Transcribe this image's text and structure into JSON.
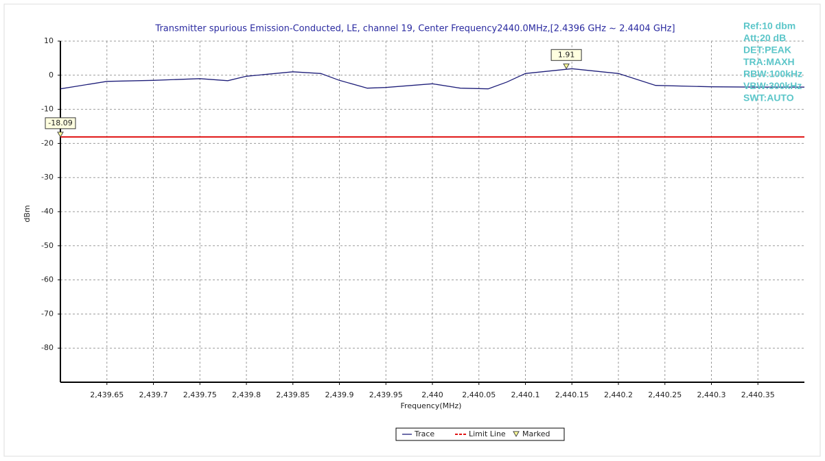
{
  "chart_data": {
    "type": "line",
    "title": "Transmitter spurious Emission-Conducted, LE, channel 19, Center Frequency2440.0MHz,[2.4396 GHz ~ 2.4404 GHz]",
    "x_label": "Frequency(MHz)",
    "y_label": "dBm",
    "x": [
      2439.6,
      2439.65,
      2439.7,
      2439.75,
      2439.78,
      2439.8,
      2439.85,
      2439.88,
      2439.9,
      2439.93,
      2439.95,
      2440.0,
      2440.03,
      2440.06,
      2440.08,
      2440.1,
      2440.15,
      2440.2,
      2440.24,
      2440.3,
      2440.35,
      2440.4
    ],
    "series": [
      {
        "name": "Trace",
        "color": "#1c1c78",
        "values": [
          -4,
          -1.8,
          -1.5,
          -1,
          -1.6,
          -0.3,
          1,
          0.5,
          -1.5,
          -3.8,
          -3.6,
          -2.5,
          -3.8,
          -4,
          -2,
          0.5,
          1.9,
          0.5,
          -3,
          -3.4,
          -3.5,
          -3.5
        ]
      }
    ],
    "limit_line": {
      "name": "Limit Line",
      "color": "#e01010",
      "value": -18.09
    },
    "markers": {
      "name": "Marked",
      "points": [
        {
          "x": 2439.6,
          "value": -18.09
        },
        {
          "x": 2440.144,
          "value": 1.91
        }
      ]
    },
    "xlim": [
      2439.6,
      2440.4
    ],
    "ylim": [
      -90,
      10
    ],
    "xticks": [
      {
        "value": 2439.65,
        "label": "2,439.65"
      },
      {
        "value": 2439.7,
        "label": "2,439.7"
      },
      {
        "value": 2439.75,
        "label": "2,439.75"
      },
      {
        "value": 2439.8,
        "label": "2,439.8"
      },
      {
        "value": 2439.85,
        "label": "2,439.85"
      },
      {
        "value": 2439.9,
        "label": "2,439.9"
      },
      {
        "value": 2439.95,
        "label": "2,439.95"
      },
      {
        "value": 2440,
        "label": "2,440"
      },
      {
        "value": 2440.05,
        "label": "2,440.05"
      },
      {
        "value": 2440.1,
        "label": "2,440.1"
      },
      {
        "value": 2440.15,
        "label": "2,440.15"
      },
      {
        "value": 2440.2,
        "label": "2,440.2"
      },
      {
        "value": 2440.25,
        "label": "2,440.25"
      },
      {
        "value": 2440.3,
        "label": "2,440.3"
      },
      {
        "value": 2440.35,
        "label": "2,440.35"
      }
    ],
    "yticks": [
      10,
      0,
      -10,
      -20,
      -30,
      -40,
      -50,
      -60,
      -70,
      -80
    ],
    "grid": true,
    "annotations": [
      "Ref:10 dbm",
      "Att:20 dB",
      "DET:PEAK",
      "TRA:MAXH",
      "RBW:100kHz",
      "VBW:300kHz",
      "SWT:AUTO"
    ]
  }
}
